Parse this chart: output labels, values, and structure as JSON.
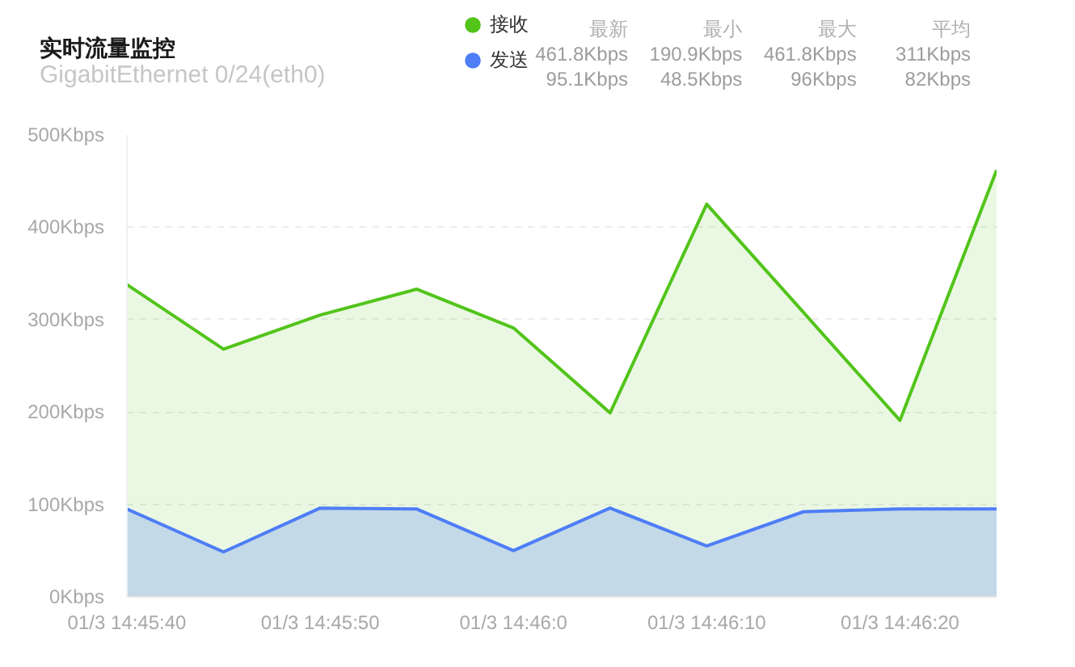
{
  "chart_data": {
    "type": "area",
    "title": "实时流量监控",
    "subtitle": "GigabitEthernet 0/24(eth0)",
    "categories": [
      "01/3 14:45:40",
      null,
      "01/3 14:45:50",
      null,
      "01/3 14:46:0",
      null,
      "01/3 14:46:10",
      null,
      "01/3 14:46:20",
      null
    ],
    "series": [
      {
        "name": "接收",
        "color": "#52c41a",
        "values": [
          338,
          268,
          305,
          333,
          291,
          199,
          425,
          308,
          190.9,
          461.8
        ]
      },
      {
        "name": "发送",
        "color": "#4e7df6",
        "values": [
          95,
          48.5,
          96,
          95,
          50,
          96,
          55,
          92,
          95,
          95.1
        ]
      }
    ],
    "ylim": [
      0,
      500
    ],
    "yticks": [
      {
        "value": 0,
        "label": "0Kbps"
      },
      {
        "value": 100,
        "label": "100Kbps"
      },
      {
        "value": 200,
        "label": "200Kbps"
      },
      {
        "value": 300,
        "label": "300Kbps"
      },
      {
        "value": 400,
        "label": "400Kbps"
      },
      {
        "value": 500,
        "label": "500Kbps"
      }
    ],
    "grid": "y",
    "legend": "top",
    "line_style": "solid",
    "annotations": [
      "最新",
      "最小",
      "最大",
      "平均",
      "461.8Kbps",
      "190.9Kbps",
      "461.8Kbps",
      "311Kbps",
      "95.1Kbps",
      "48.5Kbps",
      "96Kbps",
      "82Kbps"
    ]
  }
}
